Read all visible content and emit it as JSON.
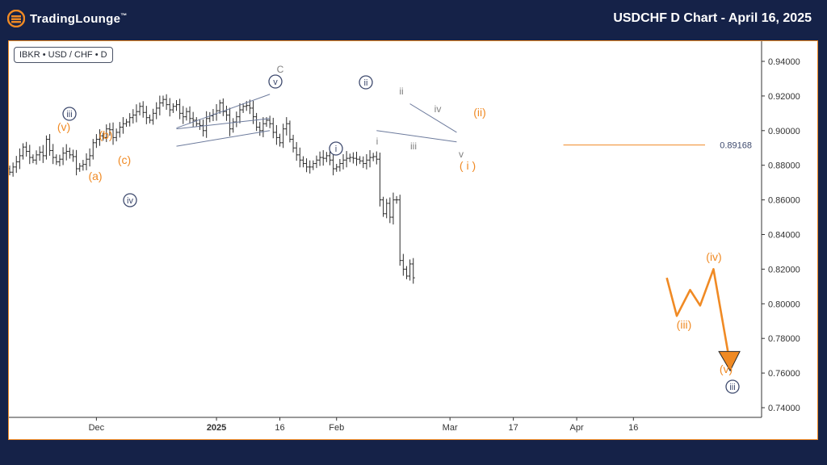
{
  "header": {
    "logo_text": "TradingLounge",
    "chart_title": "USDCHF D Chart - April 16, 2025"
  },
  "symbol_label": "IBKR • USD / CHF • D",
  "colors": {
    "background": "#152248",
    "border": "#f08a24",
    "candle": "#2b2b2b",
    "wave_orange": "#f08a24",
    "wave_navy": "#3e4a6e",
    "wave_gray": "#808080",
    "channel": "#6c7a9c"
  },
  "chart_data": {
    "type": "ohlc",
    "title": "USDCHF D Chart - April 16, 2025",
    "ylim": [
      0.735,
      0.95
    ],
    "y_ticks": [
      "0.94000",
      "0.92000",
      "0.90000",
      "0.88000",
      "0.86000",
      "0.84000",
      "0.82000",
      "0.80000",
      "0.78000",
      "0.76000",
      "0.74000"
    ],
    "x_ticks": [
      {
        "label": "Dec",
        "bold": false,
        "bar": 26
      },
      {
        "label": "2025",
        "bold": true,
        "bar": 62
      },
      {
        "label": "16",
        "bold": false,
        "bar": 81
      },
      {
        "label": "Feb",
        "bold": false,
        "bar": 98
      },
      {
        "label": "Mar",
        "bold": false,
        "bar": 132
      },
      {
        "label": "17",
        "bold": false,
        "bar": 151
      },
      {
        "label": "Apr",
        "bold": false,
        "bar": 170
      },
      {
        "label": "16",
        "bold": false,
        "bar": 187
      }
    ],
    "level_line": {
      "value": 0.89168,
      "label": "0.89168",
      "from_bar": 166
    },
    "closes": [
      0.876,
      0.879,
      0.882,
      0.8855,
      0.8905,
      0.888,
      0.8845,
      0.883,
      0.886,
      0.8875,
      0.8855,
      0.895,
      0.8885,
      0.8845,
      0.882,
      0.8835,
      0.887,
      0.888,
      0.886,
      0.885,
      0.878,
      0.8795,
      0.8805,
      0.8835,
      0.8855,
      0.893,
      0.895,
      0.897,
      0.896,
      0.901,
      0.9005,
      0.896,
      0.899,
      0.902,
      0.904,
      0.905,
      0.9075,
      0.909,
      0.911,
      0.914,
      0.9105,
      0.9075,
      0.906,
      0.91,
      0.913,
      0.916,
      0.918,
      0.915,
      0.912,
      0.914,
      0.915,
      0.91,
      0.908,
      0.911,
      0.907,
      0.906,
      0.904,
      0.903,
      0.9,
      0.907,
      0.9085,
      0.9095,
      0.9115,
      0.916,
      0.911,
      0.909,
      0.901,
      0.905,
      0.908,
      0.912,
      0.914,
      0.9145,
      0.913,
      0.908,
      0.902,
      0.9,
      0.904,
      0.906,
      0.904,
      0.899,
      0.896,
      0.893,
      0.901,
      0.904,
      0.895,
      0.89,
      0.886,
      0.883,
      0.881,
      0.879,
      0.879,
      0.881,
      0.883,
      0.8845,
      0.884,
      0.8855,
      0.883,
      0.878,
      0.879,
      0.881,
      0.883,
      0.884,
      0.8845,
      0.884,
      0.8835,
      0.8825,
      0.881,
      0.883,
      0.8845,
      0.885,
      0.8835,
      0.86,
      0.852,
      0.858,
      0.85,
      0.86,
      0.86,
      0.825,
      0.82,
      0.816,
      0.823,
      0.815
    ]
  },
  "wave_labels": [
    {
      "text": "iii",
      "style": "navy-circle",
      "bar": 8
    },
    {
      "text": "(v)",
      "style": "orange",
      "bar": 8
    },
    {
      "text": "(b)",
      "style": "orange",
      "bar": 14
    },
    {
      "text": "(a)",
      "style": "orange",
      "bar": 12
    },
    {
      "text": "(c)",
      "style": "orange",
      "bar": 17
    },
    {
      "text": "iv",
      "style": "navy-circle",
      "bar": 18
    },
    {
      "text": "C",
      "style": "gray",
      "bar": 47
    },
    {
      "text": "v",
      "style": "navy-circle",
      "bar": 46
    },
    {
      "text": "ii",
      "style": "navy-circle",
      "bar": 62
    },
    {
      "text": "i",
      "style": "navy-circle",
      "bar": 57
    },
    {
      "text": "ii",
      "style": "gray",
      "bar": 69
    },
    {
      "text": "iv",
      "style": "gray",
      "bar": 76
    },
    {
      "text": "i",
      "style": "gray",
      "bar": 65
    },
    {
      "text": "iii",
      "style": "gray",
      "bar": 72
    },
    {
      "text": "v",
      "style": "gray",
      "bar": 81
    },
    {
      "text": "(ii)",
      "style": "orange",
      "bar": 85
    },
    {
      "text": "( i )",
      "style": "orange",
      "bar": 83
    },
    {
      "text": "(iii)",
      "style": "orange",
      "bar": 121
    },
    {
      "text": "(iv)",
      "style": "orange",
      "bar": 129
    },
    {
      "text": "(v)",
      "style": "orange",
      "bar": 131
    },
    {
      "text": "iii",
      "style": "navy-circle",
      "bar": 132
    }
  ],
  "projection": [
    0.815,
    0.793,
    0.808,
    0.799,
    0.82,
    0.765
  ]
}
